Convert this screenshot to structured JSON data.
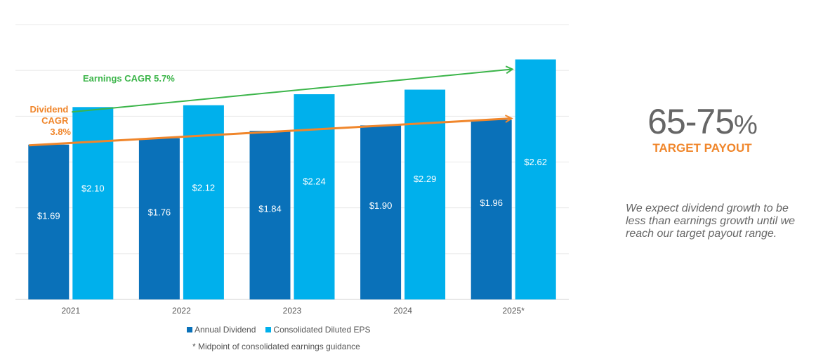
{
  "chart_data": {
    "type": "bar",
    "categories": [
      "2021",
      "2022",
      "2023",
      "2024",
      "2025*"
    ],
    "series": [
      {
        "name": "Annual Dividend",
        "values": [
          1.69,
          1.76,
          1.84,
          1.9,
          1.96
        ],
        "labels": [
          "$1.69",
          "$1.76",
          "$1.84",
          "$1.90",
          "$1.96"
        ],
        "color": "#0a71b9"
      },
      {
        "name": "Consolidated Diluted EPS",
        "values": [
          2.1,
          2.12,
          2.24,
          2.29,
          2.62
        ],
        "labels": [
          "$2.10",
          "$2.12",
          "$2.24",
          "$2.29",
          "$2.62"
        ],
        "color": "#00b0ec"
      }
    ],
    "ylim": [
      0,
      3.0
    ],
    "grid": true,
    "legend_position": "bottom",
    "annotations": {
      "earnings_cagr": {
        "text": "Earnings CAGR 5.7%",
        "color": "#3cb54a"
      },
      "dividend_cagr": {
        "lines": [
          "Dividend",
          "CAGR",
          "3.8%"
        ],
        "color": "#f0862b"
      }
    },
    "footnote": "* Midpoint of consolidated earnings guidance"
  },
  "payout": {
    "range": "65-75",
    "percent": "%",
    "label": "TARGET PAYOUT"
  },
  "note": "We expect dividend growth to be less than earnings growth until we reach our target payout range.",
  "colors": {
    "dividend": "#0a71b9",
    "eps": "#00b0ec",
    "earnings_arrow": "#3cb54a",
    "dividend_arrow": "#f0862b",
    "grid": "#e6e6e6"
  }
}
